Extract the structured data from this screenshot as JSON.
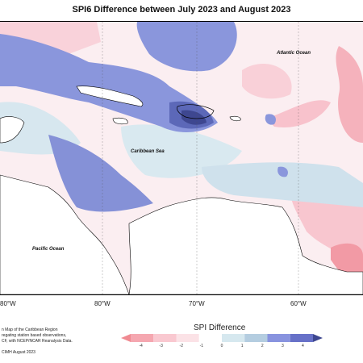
{
  "title": "SPI6 Difference between July 2023 and August 2023",
  "map_labels": {
    "atlantic": "Atlantic Ocean",
    "caribbean": "Caribbean Sea",
    "pacific": "Pacific Ocean"
  },
  "longitude_labels": [
    "80°W",
    "80°W",
    "70°W",
    "60°W"
  ],
  "credit_lines": [
    "n Map of the Caribbean Region",
    "regating station based observations,",
    "CF, with NCEP/NCAR Reanalysis Data."
  ],
  "copyright": "CIMH August 2023",
  "legend": {
    "title": "SPI Difference",
    "ticks": [
      "-4",
      "-3",
      "-2",
      "-1",
      "0",
      "1",
      "2",
      "3",
      "4"
    ],
    "colors": [
      "#f08a92",
      "#f5a7b0",
      "#f9c8d0",
      "#fbe2e6",
      "#ffffff",
      "#d6e8ef",
      "#b4cde0",
      "#8893df",
      "#6771c8",
      "#3e4790"
    ]
  }
}
